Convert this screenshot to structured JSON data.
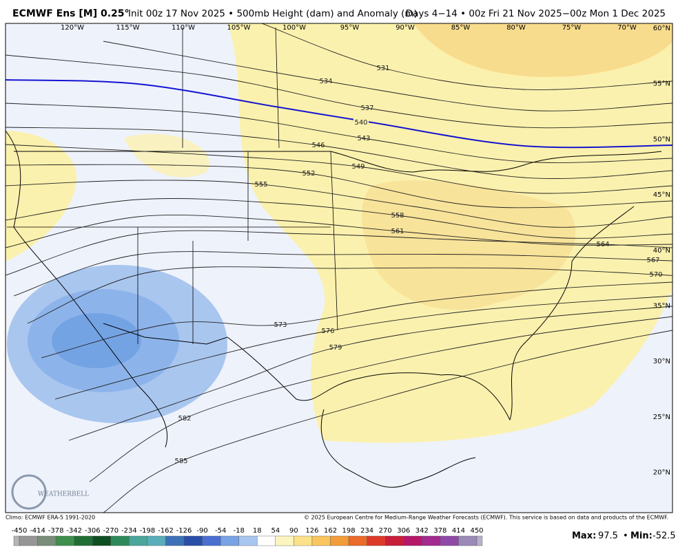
{
  "header": {
    "model": "ECMWF Ens [M] 0.25°",
    "init": "Init 00z 17 Nov 2025 • 500mb Height (dam) and Anomaly (m)",
    "valid": "Days 4−14 • 00z Fri 21 Nov 2025−00z Mon 1 Dec 2025"
  },
  "map": {
    "longitude_labels": [
      "120°W",
      "115°W",
      "110°W",
      "105°W",
      "100°W",
      "95°W",
      "90°W",
      "85°W",
      "80°W",
      "75°W",
      "70°W"
    ],
    "latitude_labels": [
      "60°N",
      "55°N",
      "50°N",
      "45°N",
      "40°N",
      "35°N",
      "30°N",
      "25°N",
      "20°N"
    ],
    "contour_labels": [
      531,
      534,
      537,
      540,
      543,
      546,
      549,
      552,
      555,
      558,
      561,
      564,
      567,
      570,
      573,
      576,
      579,
      582,
      585
    ],
    "logo": "WEATHERBELL"
  },
  "footer": {
    "climo": "Climo: ECMWF ERA-5 1991-2020",
    "copyright": "© 2025 European Centre for Medium-Range Weather Forecasts (ECMWF). This service is based on data and products of the ECMWF.",
    "colorbar_labels": [
      -450,
      -414,
      -378,
      -342,
      -306,
      -270,
      -234,
      -198,
      -162,
      -126,
      -90,
      -54,
      -18,
      18,
      54,
      90,
      126,
      162,
      198,
      234,
      270,
      306,
      342,
      378,
      414,
      450
    ],
    "max_label": "Max:",
    "max": 97.5,
    "separator": "•",
    "min_label": "Min:",
    "min": -52.5
  }
}
